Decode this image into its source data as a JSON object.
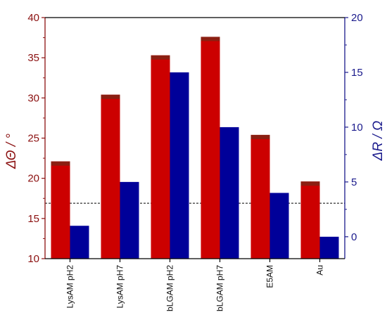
{
  "chart_data": {
    "type": "bar",
    "categories": [
      "LysAM pH2",
      "LysAM pH7",
      "bLGAM pH2",
      "bLGAM pH7",
      "E5AM",
      "Au"
    ],
    "series": [
      {
        "axis": "left",
        "values": [
          22.1,
          30.4,
          35.3,
          37.6,
          25.4,
          19.6
        ],
        "color": "#CC0000"
      },
      {
        "axis": "right",
        "values": [
          1.0,
          5.0,
          15.0,
          10.0,
          4.0,
          0.0
        ],
        "color": "#000099"
      }
    ],
    "ylabel_left": "ΔΘ / °",
    "ylabel_right": "ΔR / Ω",
    "ylim_left": [
      10,
      40
    ],
    "ylim_right": [
      -2,
      20
    ],
    "yticks_left": [
      10,
      15,
      20,
      25,
      30,
      35,
      40
    ],
    "yticks_right": [
      0,
      5,
      10,
      15,
      20
    ],
    "reference_line_left": 16.9,
    "left_axis_color": "#8B1010",
    "right_axis_color": "#1a1a8c",
    "grid": false
  }
}
